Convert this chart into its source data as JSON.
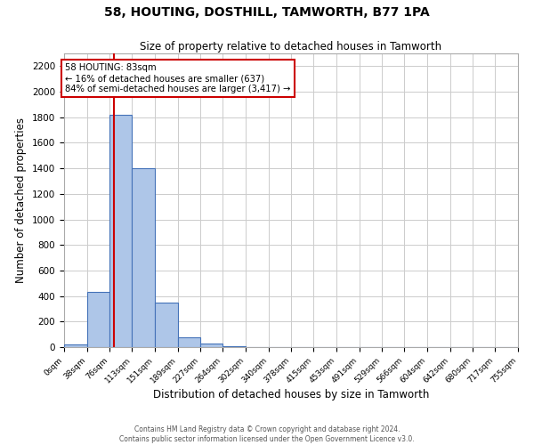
{
  "title": "58, HOUTING, DOSTHILL, TAMWORTH, B77 1PA",
  "subtitle": "Size of property relative to detached houses in Tamworth",
  "xlabel": "Distribution of detached houses by size in Tamworth",
  "ylabel": "Number of detached properties",
  "bin_edges": [
    0,
    38,
    76,
    113,
    151,
    189,
    227,
    264,
    302,
    340,
    378,
    415,
    453,
    491,
    529,
    566,
    604,
    642,
    680,
    717,
    755
  ],
  "bin_labels": [
    "0sqm",
    "38sqm",
    "76sqm",
    "113sqm",
    "151sqm",
    "189sqm",
    "227sqm",
    "264sqm",
    "302sqm",
    "340sqm",
    "378sqm",
    "415sqm",
    "453sqm",
    "491sqm",
    "529sqm",
    "566sqm",
    "604sqm",
    "642sqm",
    "680sqm",
    "717sqm",
    "755sqm"
  ],
  "counts": [
    20,
    430,
    1820,
    1400,
    350,
    80,
    25,
    5,
    0,
    0,
    0,
    0,
    0,
    0,
    0,
    0,
    0,
    0,
    0,
    0
  ],
  "bar_color": "#aec6e8",
  "bar_edge_color": "#4472b8",
  "property_value": 83,
  "vline_color": "#cc0000",
  "annotation_line1": "58 HOUTING: 83sqm",
  "annotation_line2": "← 16% of detached houses are smaller (637)",
  "annotation_line3": "84% of semi-detached houses are larger (3,417) →",
  "annotation_box_color": "#ffffff",
  "annotation_box_edge_color": "#cc0000",
  "ylim": [
    0,
    2300
  ],
  "yticks": [
    0,
    200,
    400,
    600,
    800,
    1000,
    1200,
    1400,
    1600,
    1800,
    2000,
    2200
  ],
  "footer_line1": "Contains HM Land Registry data © Crown copyright and database right 2024.",
  "footer_line2": "Contains public sector information licensed under the Open Government Licence v3.0.",
  "background_color": "#ffffff",
  "grid_color": "#cccccc"
}
